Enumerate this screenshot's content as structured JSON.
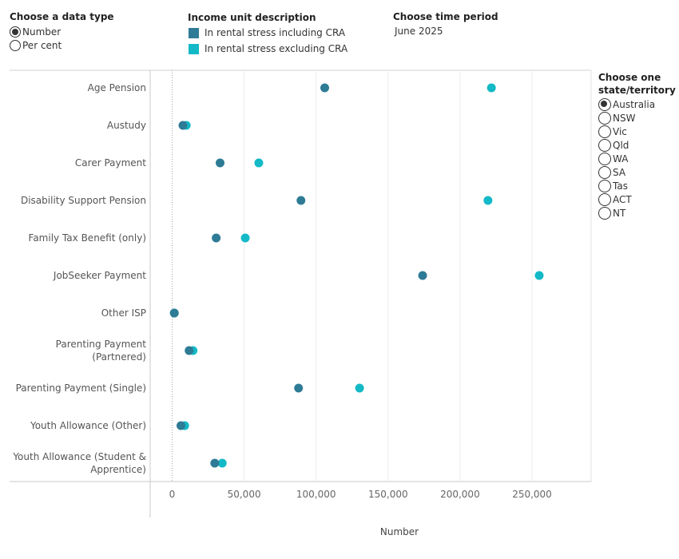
{
  "data_type": {
    "title": "Choose a data type",
    "options": [
      "Number",
      "Per cent"
    ],
    "selected": "Number"
  },
  "legend": {
    "title": "Income unit description",
    "items": [
      {
        "label": "In rental stress including CRA",
        "color": "#2e7b96"
      },
      {
        "label": "In rental stress excluding CRA",
        "color": "#13b9c6"
      }
    ]
  },
  "time_period": {
    "title": "Choose time period",
    "value": "June 2025"
  },
  "state": {
    "title_line1": "Choose one",
    "title_line2": "state/territory",
    "options": [
      "Australia",
      "NSW",
      "Vic",
      "Qld",
      "WA",
      "SA",
      "Tas",
      "ACT",
      "NT"
    ],
    "selected": "Australia"
  },
  "chart_data": {
    "type": "dumbbell",
    "xlabel": "Number",
    "xlim": [
      -15000,
      275000
    ],
    "xticks": [
      0,
      50000,
      100000,
      150000,
      200000,
      250000
    ],
    "xtick_labels": [
      "0",
      "50,000",
      "100,000",
      "150,000",
      "200,000",
      "250,000"
    ],
    "grid": true,
    "categories": [
      [
        "Age Pension"
      ],
      [
        "Austudy"
      ],
      [
        "Carer Payment"
      ],
      [
        "Disability Support Pension"
      ],
      [
        "Family Tax Benefit (only)"
      ],
      [
        "JobSeeker Payment"
      ],
      [
        "Other ISP"
      ],
      [
        "Parenting Payment",
        "(Partnered)"
      ],
      [
        "Parenting Payment (Single)"
      ],
      [
        "Youth Allowance (Other)"
      ],
      [
        "Youth Allowance (Student &",
        "Apprentice)"
      ]
    ],
    "series": [
      {
        "name": "In rental stress including CRA",
        "color": "#2e7b96",
        "values": [
          106000,
          7500,
          33300,
          89500,
          30600,
          174000,
          1500,
          11800,
          87800,
          6100,
          29600
        ]
      },
      {
        "name": "In rental stress excluding CRA",
        "color": "#13b9c6",
        "values": [
          221800,
          9800,
          60200,
          219400,
          50800,
          255000,
          1500,
          14500,
          130200,
          8700,
          34800
        ]
      }
    ]
  }
}
